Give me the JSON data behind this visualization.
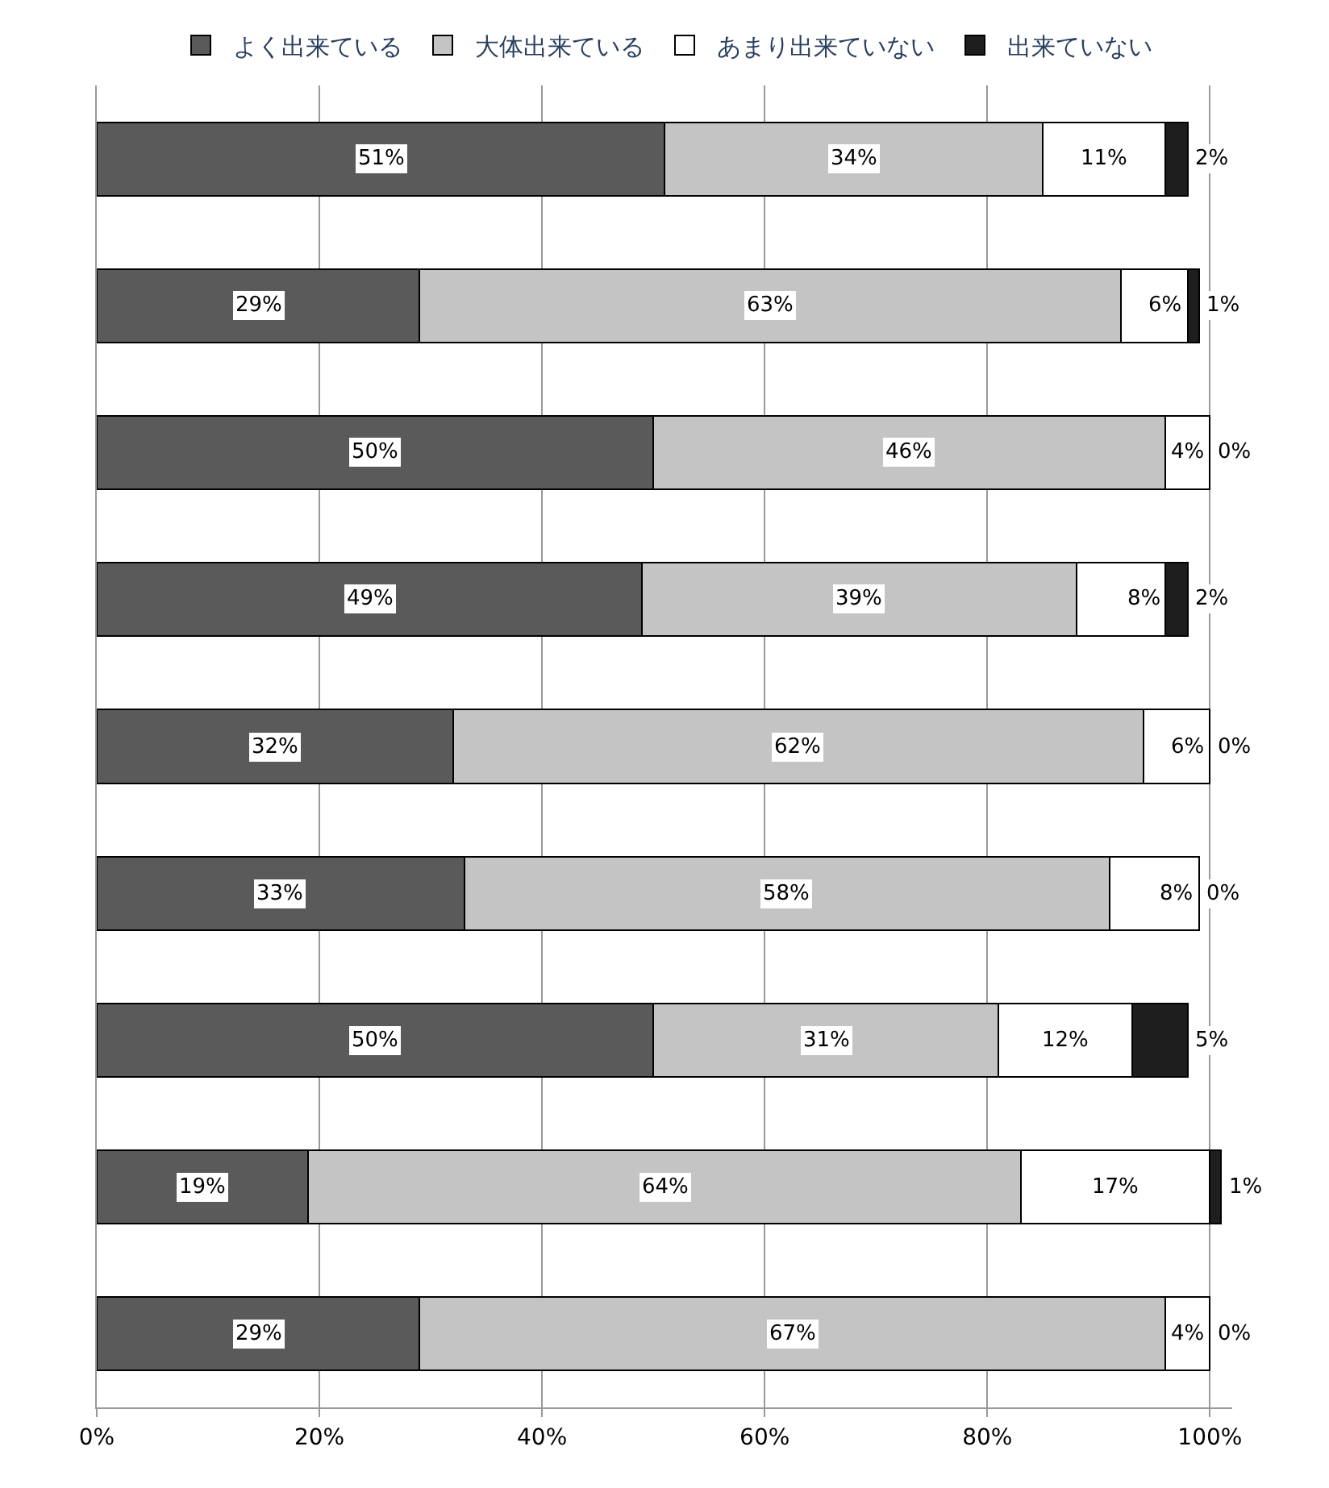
{
  "chart_data": {
    "type": "bar",
    "orientation": "horizontal",
    "stacked": true,
    "legend": "top",
    "grid": "x",
    "tick_labels": "x",
    "categories": [
      null,
      null,
      null,
      null,
      null,
      null,
      null,
      null,
      null
    ],
    "xlim": [
      0,
      102
    ],
    "xticks": [
      {
        "value": 0,
        "label": "0%"
      },
      {
        "value": 20,
        "label": "20%"
      },
      {
        "value": 40,
        "label": "40%"
      },
      {
        "value": 60,
        "label": "60%"
      },
      {
        "value": 80,
        "label": "80%"
      },
      {
        "value": 100,
        "label": "100%"
      }
    ],
    "series": [
      {
        "name": "よく出来ている",
        "color": "#5a5a5a",
        "values": [
          51,
          29,
          50,
          49,
          32,
          33,
          50,
          19,
          29
        ],
        "value_labels": [
          "51%",
          "29%",
          "50%",
          "49%",
          "32%",
          "33%",
          "50%",
          "19%",
          "29%"
        ]
      },
      {
        "name": "大体出来ている",
        "color": "#c4c4c4",
        "values": [
          34,
          63,
          46,
          39,
          62,
          58,
          31,
          64,
          67
        ],
        "value_labels": [
          "34%",
          "63%",
          "46%",
          "39%",
          "62%",
          "58%",
          "31%",
          "64%",
          "67%"
        ]
      },
      {
        "name": "あまり出来ていない",
        "color": "#ffffff",
        "values": [
          11,
          6,
          4,
          8,
          6,
          8,
          12,
          17,
          4
        ],
        "value_labels": [
          "11%",
          "6%",
          "4%",
          "8%",
          "6%",
          "8%",
          "12%",
          "17%",
          "4%"
        ]
      },
      {
        "name": "出来ていない",
        "color": "#1e1e1e",
        "values": [
          2,
          1,
          0,
          2,
          0,
          0,
          5,
          1,
          0
        ],
        "value_labels": [
          "2%",
          "1%",
          "0%",
          "2%",
          "0%",
          "0%",
          "5%",
          "1%",
          "0%"
        ]
      }
    ]
  }
}
